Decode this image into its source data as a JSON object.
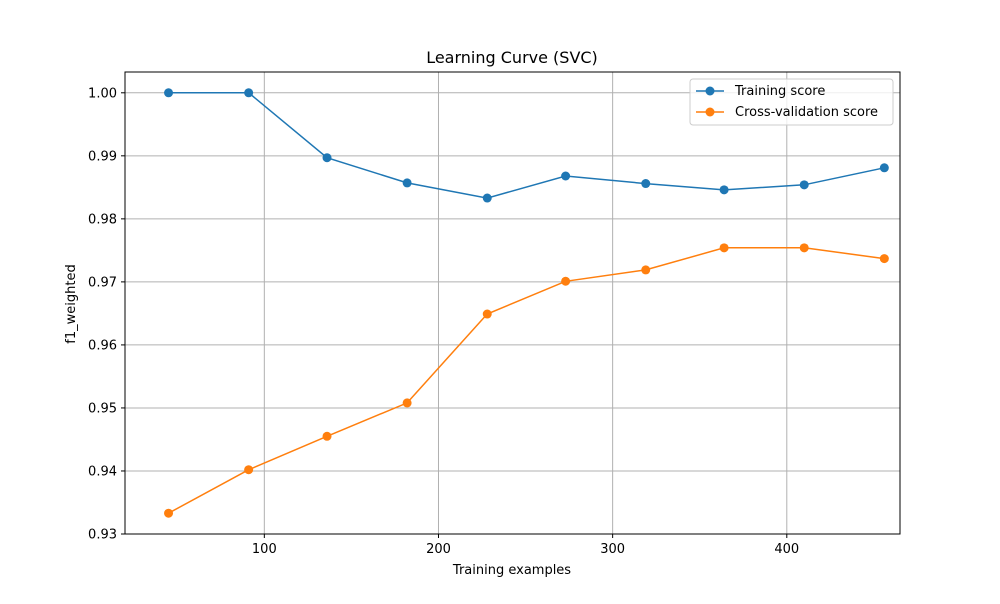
{
  "chart_data": {
    "type": "line",
    "title": "Learning Curve (SVC)",
    "xlabel": "Training examples",
    "ylabel": "f1_weighted",
    "xlim": [
      20,
      465
    ],
    "ylim": [
      0.93,
      1.0033
    ],
    "xticks": [
      100,
      200,
      300,
      400
    ],
    "yticks": [
      0.93,
      0.94,
      0.95,
      0.96,
      0.97,
      0.98,
      0.99,
      1.0
    ],
    "xtick_labels": [
      "100",
      "200",
      "300",
      "400"
    ],
    "ytick_labels": [
      "0.93",
      "0.94",
      "0.95",
      "0.96",
      "0.97",
      "0.98",
      "0.99",
      "1.00"
    ],
    "grid": true,
    "legend_position": "top-right",
    "x": [
      45,
      91,
      136,
      182,
      228,
      273,
      319,
      364,
      410,
      456
    ],
    "series": [
      {
        "name": "Training score",
        "color": "#1f77b4",
        "marker": "circle",
        "values": [
          1.0,
          1.0,
          0.9897,
          0.9857,
          0.9833,
          0.9868,
          0.9856,
          0.9846,
          0.9854,
          0.9881
        ]
      },
      {
        "name": "Cross-validation score",
        "color": "#ff7f0e",
        "marker": "circle",
        "values": [
          0.9333,
          0.9402,
          0.9455,
          0.9508,
          0.9649,
          0.9701,
          0.9719,
          0.9754,
          0.9754,
          0.9737
        ]
      }
    ]
  }
}
